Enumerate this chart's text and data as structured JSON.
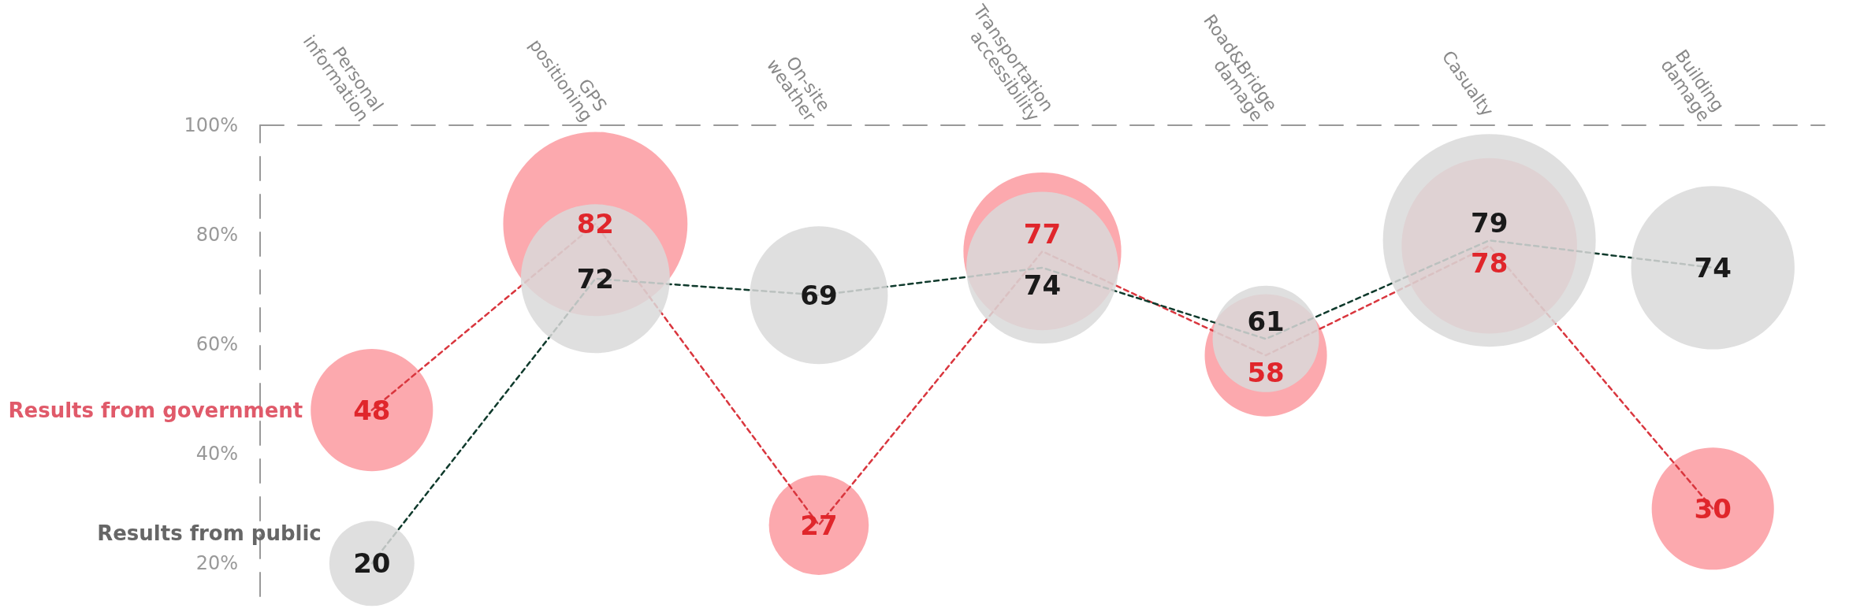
{
  "chart_data": {
    "type": "bubble",
    "categories": [
      "Personal information",
      "GPS positioning",
      "On-site weather",
      "Transportation accessibility",
      "Road&Bridge damage",
      "Casualty",
      "Building damage"
    ],
    "series": [
      {
        "name": "Results from government",
        "color": "#fb9aa0",
        "values": [
          48,
          82,
          27,
          77,
          58,
          78,
          30
        ],
        "sizes": [
          0.33,
          0.75,
          0.22,
          0.55,
          0.33,
          0.68,
          0.33
        ]
      },
      {
        "name": "Results from public",
        "color": "#d9d9d9",
        "values": [
          20,
          72,
          69,
          74,
          61,
          79,
          74
        ],
        "sizes": [
          0.16,
          0.49,
          0.42,
          0.51,
          0.25,
          1.0,
          0.59
        ]
      }
    ],
    "ylim": [
      14,
      100
    ],
    "yticks": [
      {
        "value": 20,
        "label": "20%"
      },
      {
        "value": 40,
        "label": "40%"
      },
      {
        "value": 60,
        "label": "60%"
      },
      {
        "value": 80,
        "label": "80%"
      },
      {
        "value": 100,
        "label": "100%"
      }
    ],
    "data_labels": true,
    "grid": false,
    "legend": false,
    "marker": "circle",
    "line_style": "dashed"
  }
}
